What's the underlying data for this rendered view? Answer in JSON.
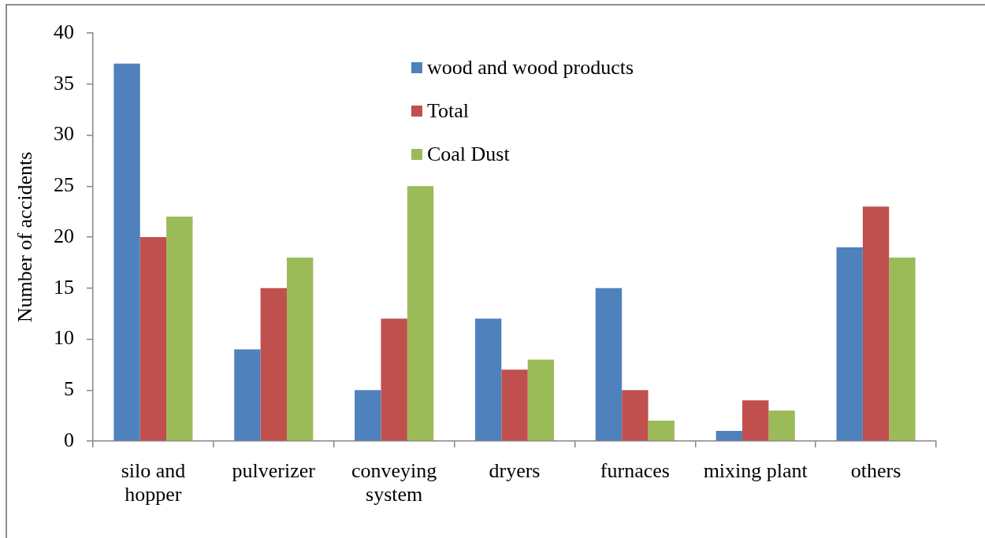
{
  "chart_data": {
    "type": "bar",
    "ylabel": "Number of accidents",
    "categories": [
      "silo and hopper",
      "pulverizer",
      "conveying system",
      "dryers",
      "furnaces",
      "mixing plant",
      "others"
    ],
    "series": [
      {
        "name": "wood and wood products",
        "color": "#4f81bd",
        "values": [
          37,
          9,
          5,
          12,
          15,
          1,
          19
        ]
      },
      {
        "name": "Total",
        "color": "#c0504d",
        "values": [
          20,
          15,
          12,
          7,
          5,
          4,
          23
        ]
      },
      {
        "name": "Coal Dust",
        "color": "#9bbb59",
        "values": [
          22,
          18,
          25,
          8,
          2,
          3,
          18
        ]
      }
    ],
    "ylim": [
      0,
      40
    ],
    "yticks": [
      0,
      5,
      10,
      15,
      20,
      25,
      30,
      35,
      40
    ],
    "grid": false,
    "legend": "top"
  }
}
